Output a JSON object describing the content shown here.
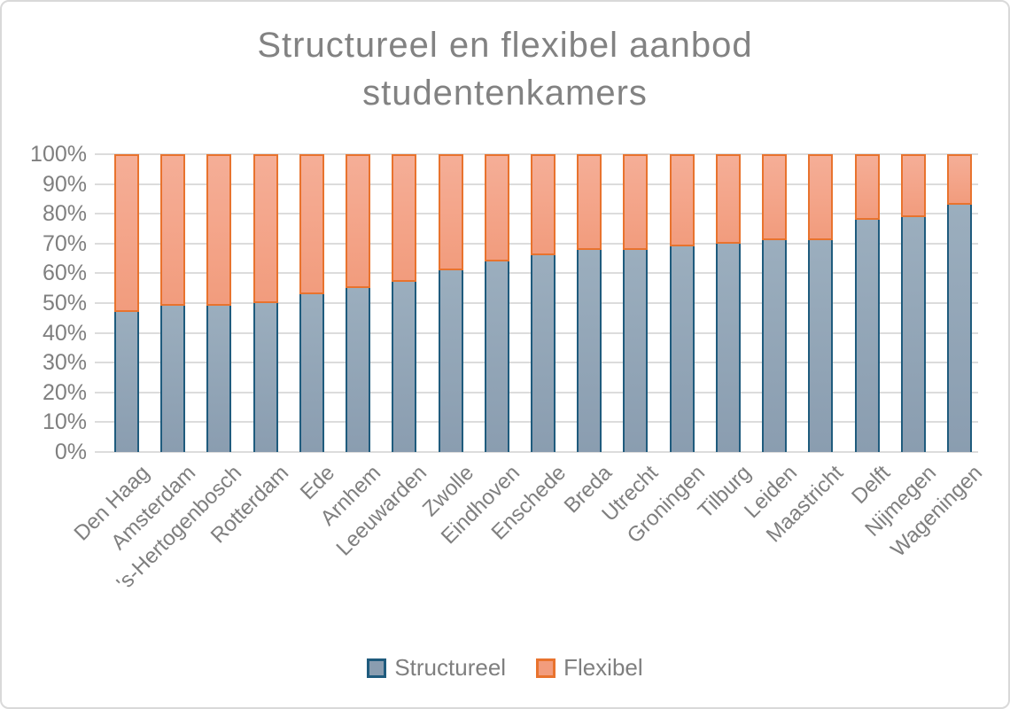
{
  "title": {
    "text": "Structureel en flexibel aanbod studentenkamers",
    "line1": "Structureel en flexibel aanbod",
    "line2": "studentenkamers"
  },
  "chart_data": {
    "type": "bar",
    "subtype": "stacked-100-percent",
    "title": "Structureel en flexibel aanbod studentenkamers",
    "categories": [
      "Den Haag",
      "Amsterdam",
      "'s-Hertogenbosch",
      "Rotterdam",
      "Ede",
      "Arnhem",
      "Leeuwarden",
      "Zwolle",
      "Eindhoven",
      "Enschede",
      "Breda",
      "Utrecht",
      "Groningen",
      "Tilburg",
      "Leiden",
      "Maastricht",
      "Delft",
      "Nijmegen",
      "Wageningen"
    ],
    "series": [
      {
        "name": "Structureel",
        "values": [
          47,
          49,
          49,
          50,
          53,
          55,
          57,
          61,
          64,
          66,
          68,
          68,
          69,
          70,
          71,
          71,
          78,
          79,
          83
        ],
        "unit": "%",
        "fill_top": "#9BAEBE",
        "fill_bottom": "#8A9DB0",
        "border": "#1F5B7D"
      },
      {
        "name": "Flexibel",
        "values": [
          53,
          51,
          51,
          50,
          47,
          45,
          43,
          39,
          36,
          34,
          32,
          32,
          31,
          30,
          29,
          29,
          22,
          21,
          17
        ],
        "unit": "%",
        "fill_top": "#F5AE97",
        "fill_bottom": "#F29C7D",
        "border": "#E8732E"
      }
    ],
    "yticks": [
      "0%",
      "10%",
      "20%",
      "30%",
      "40%",
      "50%",
      "60%",
      "70%",
      "80%",
      "90%",
      "100%"
    ],
    "ylim": [
      0,
      100
    ],
    "ytick_step": 10,
    "grid": true,
    "gridline_color": "#DCDCDC",
    "text_color": "#7F7F7F",
    "legend_position": "bottom"
  },
  "legend": {
    "items": [
      "Structureel",
      "Flexibel"
    ]
  }
}
